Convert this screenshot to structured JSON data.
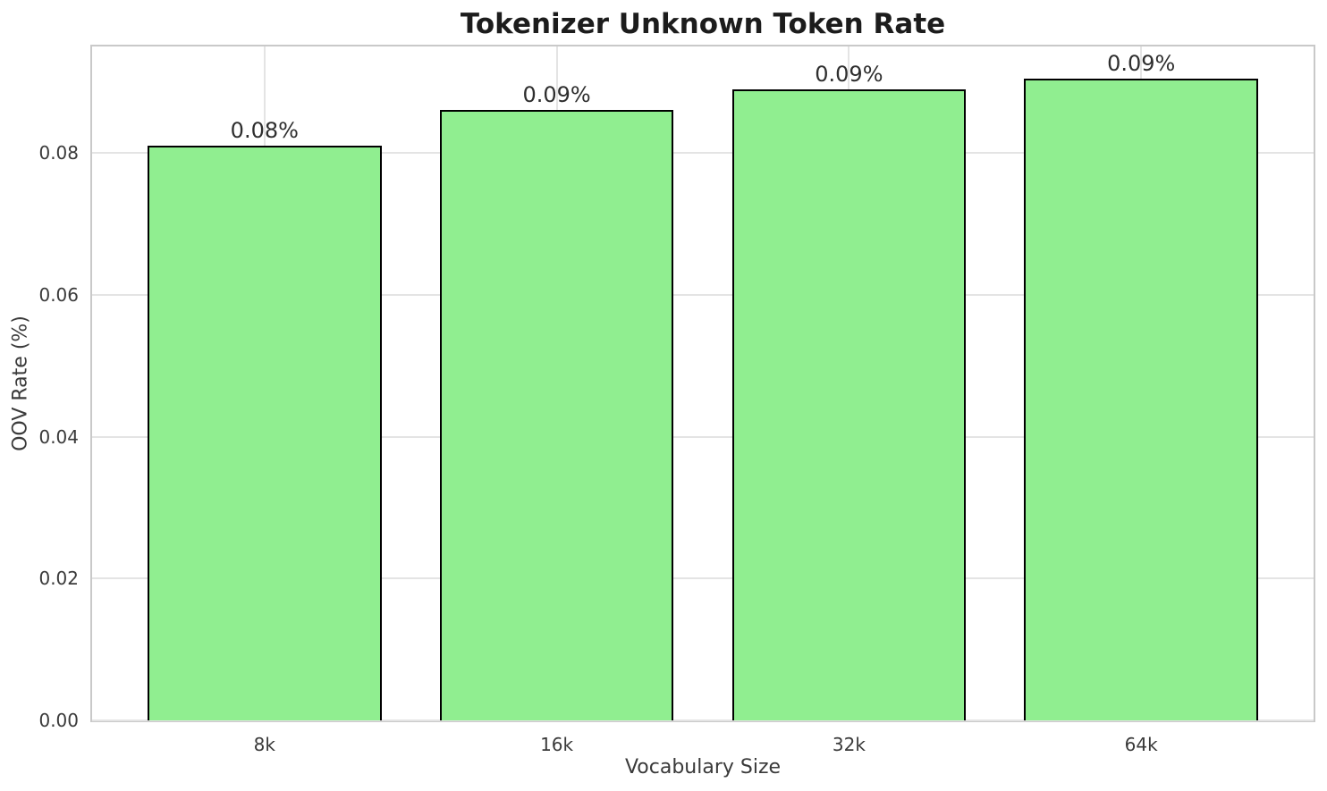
{
  "chart_data": {
    "type": "bar",
    "title": "Tokenizer Unknown Token Rate",
    "xlabel": "Vocabulary Size",
    "ylabel": "OOV Rate (%)",
    "categories": [
      "8k",
      "16k",
      "32k",
      "64k"
    ],
    "values": [
      0.081,
      0.086,
      0.089,
      0.0905
    ],
    "bar_labels": [
      "0.08%",
      "0.09%",
      "0.09%",
      "0.09%"
    ],
    "ylim": [
      0,
      0.095
    ],
    "yticks": [
      0,
      0.02,
      0.04,
      0.06,
      0.08
    ],
    "ytick_labels": [
      "0.00",
      "0.02",
      "0.04",
      "0.06",
      "0.08"
    ],
    "bar_width_units": 0.8,
    "x_margin_units": 0.59,
    "grid": true,
    "legend_position": "none",
    "colors": {
      "bar_fill": "#90EE90",
      "bar_edge": "#000000",
      "grid_line": "#e4e4e4",
      "spine": "#c9c9c9",
      "background": "#ffffff"
    }
  }
}
